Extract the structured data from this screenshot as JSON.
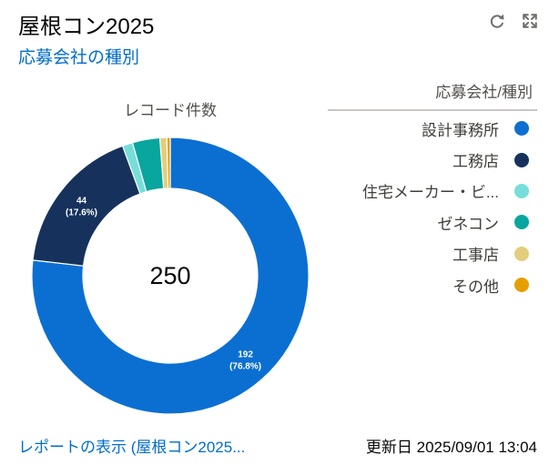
{
  "header": {
    "title": "屋根コン2025",
    "subtitle": "応募会社の種別",
    "refresh_button": {
      "icon": "refresh-icon"
    },
    "expand_button": {
      "icon": "expand-icon"
    }
  },
  "chart_data": {
    "type": "pie",
    "donut": true,
    "title": "レコード件数",
    "center_label": "250",
    "categories": [
      "設計事務所",
      "工務店",
      "住宅メーカー・ビ...",
      "ゼネコン",
      "工事店",
      "その他"
    ],
    "values": [
      192,
      44,
      3,
      8,
      2,
      1
    ],
    "colors": [
      "#0B6FD2",
      "#16325C",
      "#76DED9",
      "#08A69E",
      "#E2CE7D",
      "#E69F00"
    ],
    "data_labels": [
      {
        "category_index": 0,
        "value": "192",
        "percent": "(76.8%)"
      },
      {
        "category_index": 1,
        "value": "44",
        "percent": "(17.6%)"
      }
    ],
    "legend": {
      "title": "応募会社/種別",
      "position": "right"
    }
  },
  "footer": {
    "report_link": "レポートの表示 (屋根コン2025...",
    "updated": "更新日 2025/09/01 13:04"
  },
  "theme": {
    "link_color": "#006DCC",
    "text_color": "#080707",
    "muted_text_color": "#514F4D"
  }
}
